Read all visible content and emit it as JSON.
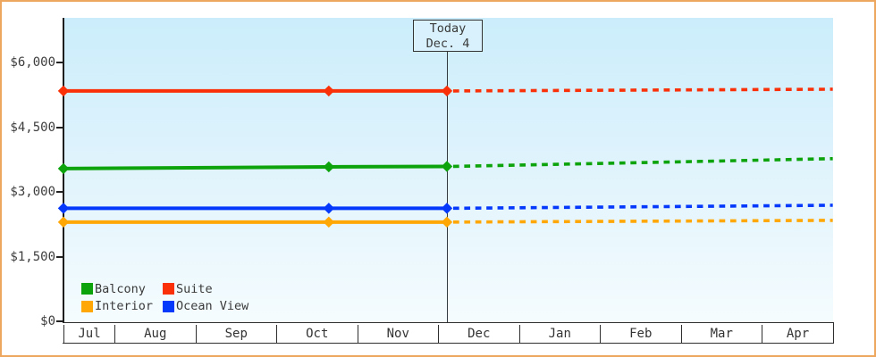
{
  "frame": {
    "border_color": "#eea75f",
    "background": "#ffffff"
  },
  "chart_data": {
    "type": "line",
    "title": "",
    "grid": "off",
    "plot_background": {
      "gradient_top": "#cbedfb",
      "gradient_bottom": "#f5fcfe"
    },
    "x_axis": {
      "tick_labels": [
        "Jul",
        "Aug",
        "Sep",
        "Oct",
        "Nov",
        "Dec",
        "Jan",
        "Feb",
        "Mar",
        "Apr"
      ],
      "style": "boxed month cells below plot"
    },
    "y_axis": {
      "tick_labels": [
        "$0",
        "$1,500",
        "$3,000",
        "$4,500",
        "$6,000"
      ],
      "tick_values": [
        0,
        1500,
        3000,
        4500,
        6000
      ],
      "currency": "$"
    },
    "today_marker": {
      "line1": "Today",
      "line2": "Dec. 4",
      "month_offset": 5.11
    },
    "series": [
      {
        "name": "Balcony",
        "color": "#0ca30c",
        "history_points": [
          {
            "approx_date": "Jul 12",
            "month_offset": 0.37,
            "value": 3540
          },
          {
            "approx_date": "Oct 21",
            "month_offset": 3.65,
            "value": 3580
          },
          {
            "approx_date": "Dec 4",
            "month_offset": 5.11,
            "value": 3590
          }
        ],
        "forecast_points": [
          {
            "approx_date": "Dec 4",
            "month_offset": 5.11,
            "value": 3590
          },
          {
            "approx_date": "late Apr",
            "month_offset": 9.88,
            "value": 3770
          }
        ]
      },
      {
        "name": "Suite",
        "color": "#f93008",
        "history_points": [
          {
            "approx_date": "Jul 12",
            "month_offset": 0.37,
            "value": 5340
          },
          {
            "approx_date": "Oct 21",
            "month_offset": 3.65,
            "value": 5340
          },
          {
            "approx_date": "Dec 4",
            "month_offset": 5.11,
            "value": 5340
          }
        ],
        "forecast_points": [
          {
            "approx_date": "Dec 4",
            "month_offset": 5.11,
            "value": 5340
          },
          {
            "approx_date": "late Apr",
            "month_offset": 9.88,
            "value": 5380
          }
        ]
      },
      {
        "name": "Interior",
        "color": "#ffa705",
        "history_points": [
          {
            "approx_date": "Jul 12",
            "month_offset": 0.37,
            "value": 2300
          },
          {
            "approx_date": "Oct 21",
            "month_offset": 3.65,
            "value": 2300
          },
          {
            "approx_date": "Dec 4",
            "month_offset": 5.11,
            "value": 2300
          }
        ],
        "forecast_points": [
          {
            "approx_date": "Dec 4",
            "month_offset": 5.11,
            "value": 2300
          },
          {
            "approx_date": "late Apr",
            "month_offset": 9.88,
            "value": 2340
          }
        ]
      },
      {
        "name": "Ocean View",
        "color": "#0438fb",
        "history_points": [
          {
            "approx_date": "Jul 12",
            "month_offset": 0.37,
            "value": 2620
          },
          {
            "approx_date": "Oct 21",
            "month_offset": 3.65,
            "value": 2620
          },
          {
            "approx_date": "Dec 4",
            "month_offset": 5.11,
            "value": 2620
          }
        ],
        "forecast_points": [
          {
            "approx_date": "Dec 4",
            "month_offset": 5.11,
            "value": 2620
          },
          {
            "approx_date": "late Apr",
            "month_offset": 9.88,
            "value": 2690
          }
        ]
      }
    ],
    "legend": {
      "entries": [
        "Balcony",
        "Suite",
        "Interior",
        "Ocean View"
      ],
      "position": "inside-bottom-left",
      "columns": 2
    },
    "line_style": {
      "history": "solid with diamond markers",
      "forecast": "dashed"
    }
  }
}
